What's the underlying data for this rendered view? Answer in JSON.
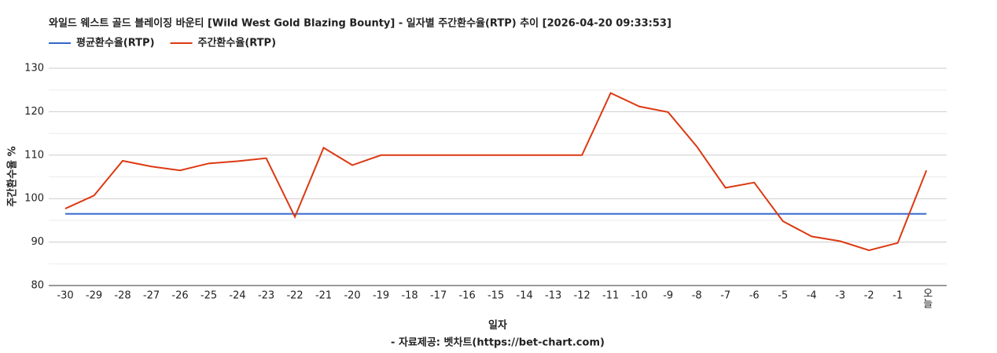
{
  "chart_data": {
    "type": "line",
    "title": "와일드 웨스트 골드 블레이징 바운티 [Wild West Gold Blazing Bounty] - 일자별 주간환수율(RTP) 추이 [2026-04-20 09:33:53]",
    "x_label": "일자",
    "y_label": "주간환수율 %",
    "source": "- 자료제공: 벳차트(https://bet-chart.com)",
    "categories": [
      "-30",
      "-29",
      "-28",
      "-27",
      "-26",
      "-25",
      "-24",
      "-23",
      "-22",
      "-21",
      "-20",
      "-19",
      "-18",
      "-17",
      "-16",
      "-15",
      "-14",
      "-13",
      "-12",
      "-11",
      "-10",
      "-9",
      "-8",
      "-7",
      "-6",
      "-5",
      "-4",
      "-3",
      "-2",
      "-1",
      "오늘"
    ],
    "series": [
      {
        "name": "평균환수율(RTP)",
        "color": "#3366cc",
        "values": [
          96.5,
          96.5,
          96.5,
          96.5,
          96.5,
          96.5,
          96.5,
          96.5,
          96.5,
          96.5,
          96.5,
          96.5,
          96.5,
          96.5,
          96.5,
          96.5,
          96.5,
          96.5,
          96.5,
          96.5,
          96.5,
          96.5,
          96.5,
          96.5,
          96.5,
          96.5,
          96.5,
          96.5,
          96.5,
          96.5,
          96.5
        ]
      },
      {
        "name": "주간환수율(RTP)",
        "color": "#dc3912",
        "values": [
          97.7,
          100.7,
          108.7,
          107.4,
          106.5,
          108.1,
          108.6,
          109.3,
          95.8,
          111.7,
          107.7,
          110,
          110,
          110,
          110,
          110,
          110,
          110,
          110,
          124.3,
          121.2,
          119.9,
          112,
          102.5,
          103.7,
          94.8,
          91.3,
          90.2,
          88.1,
          89.8,
          106.5
        ]
      }
    ],
    "ylim": [
      80,
      130
    ],
    "yticks": [
      80,
      90,
      100,
      110,
      120,
      130
    ],
    "grid": true,
    "legend": "top-left"
  }
}
